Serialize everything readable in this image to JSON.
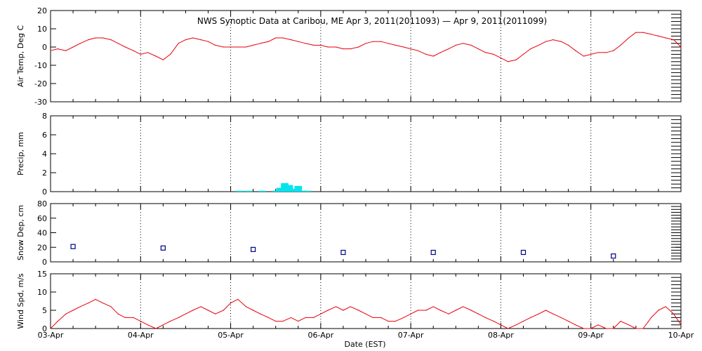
{
  "title": "NWS Synoptic Data at Caribou, ME   Apr  3, 2011(2011093) — Apr  9, 2011(2011099)",
  "xlabel": "Date (EST)",
  "date_labels": [
    "03-Apr",
    "04-Apr",
    "05-Apr",
    "06-Apr",
    "07-Apr",
    "08-Apr",
    "09-Apr",
    "10-Apr"
  ],
  "colors": {
    "line": "#e8000b",
    "precip": "#00e5ee",
    "snow": "#000080",
    "axis": "#000000"
  },
  "chart_data": [
    {
      "type": "line",
      "panel": "air-temp",
      "ylabel": "Air Temp, Deg C",
      "ylim": [
        -30,
        20
      ],
      "yticks": [
        20,
        10,
        0,
        -10,
        -20,
        -30
      ],
      "x_unit": "days since 03-Apr 00:00 EST",
      "x": [
        0,
        0.08,
        0.17,
        0.25,
        0.33,
        0.42,
        0.5,
        0.58,
        0.67,
        0.75,
        0.83,
        0.92,
        1.0,
        1.08,
        1.17,
        1.25,
        1.33,
        1.42,
        1.5,
        1.58,
        1.67,
        1.75,
        1.83,
        1.92,
        2.0,
        2.08,
        2.17,
        2.25,
        2.33,
        2.42,
        2.5,
        2.58,
        2.67,
        2.75,
        2.83,
        2.92,
        3.0,
        3.08,
        3.17,
        3.25,
        3.33,
        3.42,
        3.5,
        3.58,
        3.67,
        3.75,
        3.83,
        3.92,
        4.0,
        4.08,
        4.17,
        4.25,
        4.33,
        4.42,
        4.5,
        4.58,
        4.67,
        4.75,
        4.83,
        4.92,
        5.0,
        5.08,
        5.17,
        5.25,
        5.33,
        5.42,
        5.5,
        5.58,
        5.67,
        5.75,
        5.83,
        5.92,
        6.0,
        6.08,
        6.17,
        6.25,
        6.33,
        6.42,
        6.5,
        6.58,
        6.67,
        6.75,
        6.83,
        6.92,
        7.0
      ],
      "y": [
        -2,
        -1,
        -2,
        0,
        2,
        4,
        5,
        5,
        4,
        2,
        0,
        -2,
        -4,
        -3,
        -5,
        -7,
        -4,
        2,
        4,
        5,
        4,
        3,
        1,
        0,
        0,
        0,
        0,
        1,
        2,
        3,
        5,
        5,
        4,
        3,
        2,
        1,
        1,
        0,
        0,
        -1,
        -1,
        0,
        2,
        3,
        3,
        2,
        1,
        0,
        -1,
        -2,
        -4,
        -5,
        -3,
        -1,
        1,
        2,
        1,
        -1,
        -3,
        -4,
        -6,
        -8,
        -7,
        -4,
        -1,
        1,
        3,
        4,
        3,
        1,
        -2,
        -5,
        -4,
        -3,
        -3,
        -2,
        1,
        5,
        8,
        8,
        7,
        6,
        5,
        4,
        0
      ]
    },
    {
      "type": "bar",
      "panel": "precip",
      "ylabel": "Precip, mm",
      "ylim": [
        0,
        8
      ],
      "yticks": [
        8,
        6,
        4,
        2,
        0
      ],
      "x_unit": "days since 03-Apr 00:00 EST",
      "x": [
        2.1,
        2.2,
        2.35,
        2.5,
        2.55,
        2.6,
        2.65,
        2.7,
        2.75,
        2.8,
        2.85
      ],
      "values": [
        0.1,
        0.1,
        0.1,
        0.1,
        0.4,
        0.9,
        0.7,
        0.3,
        0.6,
        0.1,
        0.1
      ]
    },
    {
      "type": "scatter",
      "panel": "snow-depth",
      "ylabel": "Snow Dep, cm",
      "ylim": [
        0,
        80
      ],
      "yticks": [
        80,
        60,
        40,
        20,
        0
      ],
      "x_unit": "days since 03-Apr 00:00 EST",
      "x": [
        0.25,
        1.25,
        2.25,
        3.25,
        4.25,
        5.25,
        6.25
      ],
      "y": [
        21,
        19,
        17,
        13,
        13,
        13,
        8
      ]
    },
    {
      "type": "line",
      "panel": "wind-speed",
      "ylabel": "Wind Spd, m/s",
      "ylim": [
        0,
        15
      ],
      "yticks": [
        15,
        10,
        5,
        0
      ],
      "x_unit": "days since 03-Apr 00:00 EST",
      "x": [
        0,
        0.08,
        0.17,
        0.25,
        0.33,
        0.42,
        0.5,
        0.58,
        0.67,
        0.75,
        0.83,
        0.92,
        1.0,
        1.08,
        1.17,
        1.25,
        1.33,
        1.42,
        1.5,
        1.58,
        1.67,
        1.75,
        1.83,
        1.92,
        2.0,
        2.08,
        2.17,
        2.25,
        2.33,
        2.42,
        2.5,
        2.58,
        2.67,
        2.75,
        2.83,
        2.92,
        3.0,
        3.08,
        3.17,
        3.25,
        3.33,
        3.42,
        3.5,
        3.58,
        3.67,
        3.75,
        3.83,
        3.92,
        4.0,
        4.08,
        4.17,
        4.25,
        4.33,
        4.42,
        4.5,
        4.58,
        4.67,
        4.75,
        4.83,
        4.92,
        5.0,
        5.08,
        5.17,
        5.25,
        5.33,
        5.42,
        5.5,
        5.58,
        5.67,
        5.75,
        5.83,
        5.92,
        6.0,
        6.08,
        6.17,
        6.25,
        6.33,
        6.42,
        6.5,
        6.58,
        6.67,
        6.75,
        6.83,
        6.92,
        7.0
      ],
      "y": [
        0,
        2,
        4,
        5,
        6,
        7,
        8,
        7,
        6,
        4,
        3,
        3,
        2,
        1,
        0,
        1,
        2,
        3,
        4,
        5,
        6,
        5,
        4,
        5,
        7,
        8,
        6,
        5,
        4,
        3,
        2,
        2,
        3,
        2,
        3,
        3,
        4,
        5,
        6,
        5,
        6,
        5,
        4,
        3,
        3,
        2,
        2,
        3,
        4,
        5,
        5,
        6,
        5,
        4,
        5,
        6,
        5,
        4,
        3,
        2,
        1,
        0,
        1,
        2,
        3,
        4,
        5,
        4,
        3,
        2,
        1,
        0,
        0,
        1,
        0,
        0,
        2,
        1,
        0,
        0,
        3,
        5,
        6,
        4,
        1
      ]
    }
  ]
}
